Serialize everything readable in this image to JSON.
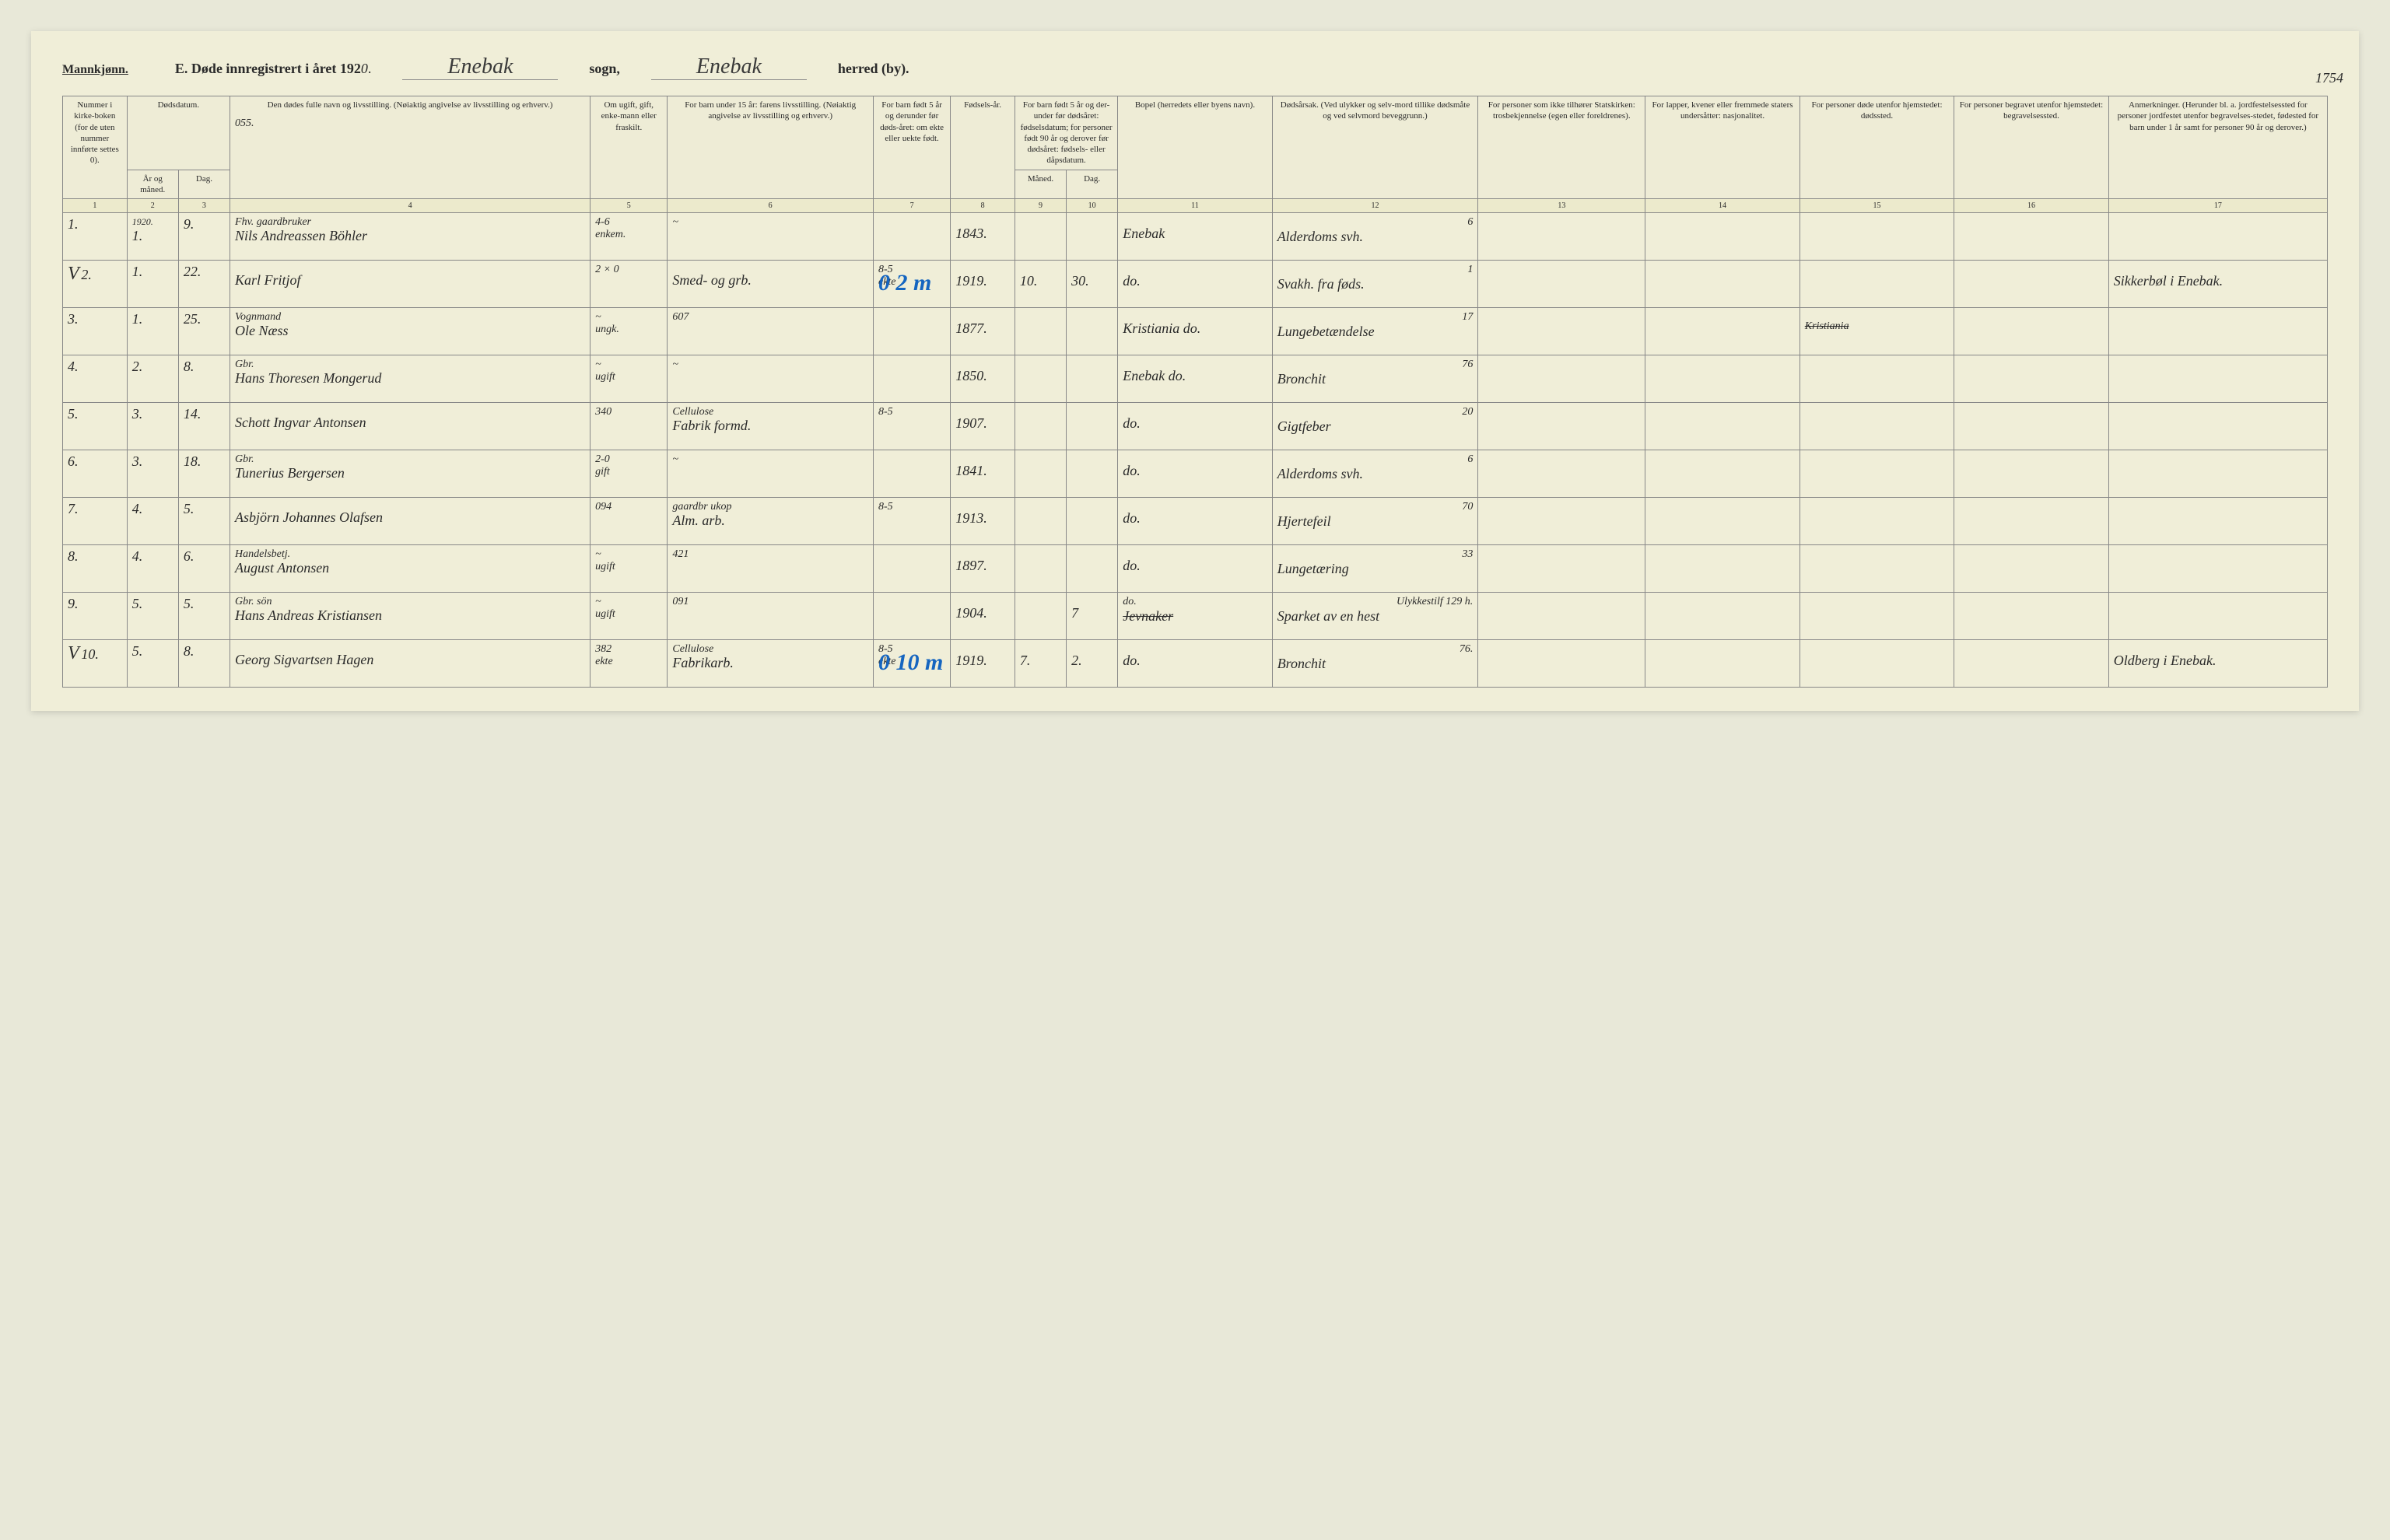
{
  "header": {
    "gender": "Mannkjønn.",
    "title_prefix": "E.  Døde innregistrert i året 192",
    "year_digit": "0",
    "period": ".",
    "parish_script": "Enebak",
    "parish_label": "sogn,",
    "district_script": "Enebak",
    "district_label": "herred (by).",
    "page_number": "1754"
  },
  "columns": {
    "c1": "Nummer i kirke-boken (for de uten nummer innførte settes 0).",
    "c2_group": "Dødsdatum.",
    "c2": "År og måned.",
    "c3": "Dag.",
    "c4": "Den dødes fulle navn og livsstilling. (Nøiaktig angivelse av livsstilling og erhverv.)",
    "c4_note": "055.",
    "c5": "Om ugift, gift, enke-mann eller fraskilt.",
    "c6": "For barn under 15 år: farens livsstilling. (Nøiaktig angivelse av livsstilling og erhverv.)",
    "c7": "For barn født 5 år og derunder før døds-året: om ekte eller uekte født.",
    "c8": "Fødsels-år.",
    "c9_group": "For barn født 5 år og der-under før dødsåret: fødselsdatum; for personer født 90 år og derover før dødsåret: fødsels- eller dåpsdatum.",
    "c9": "Måned.",
    "c10": "Dag.",
    "c11": "Bopel (herredets eller byens navn).",
    "c12": "Dødsårsak. (Ved ulykker og selv-mord tillike dødsmåte og ved selvmord beveggrunn.)",
    "c13": "For personer som ikke tilhører Statskirken: trosbekjennelse (egen eller foreldrenes).",
    "c14": "For lapper, kvener eller fremmede staters undersåtter: nasjonalitet.",
    "c15": "For personer døde utenfor hjemstedet: dødssted.",
    "c16": "For personer begravet utenfor hjemstedet: begravelsessted.",
    "c17": "Anmerkninger. (Herunder bl. a. jordfestelsessted for personer jordfestet utenfor begravelses-stedet, fødested for barn under 1 år samt for personer 90 år og derover.)"
  },
  "colnums": [
    "1",
    "2",
    "3",
    "4",
    "5",
    "6",
    "7",
    "8",
    "9",
    "10",
    "11",
    "12",
    "13",
    "14",
    "15",
    "16",
    "17"
  ],
  "rows": [
    {
      "num": "1.",
      "mark": "",
      "year": "1920.",
      "month": "1.",
      "day": "9.",
      "name_top": "Fhv. gaardbruker",
      "name": "Nils Andreassen Böhler",
      "status": "enkem.",
      "status_top": "4-6",
      "father_top": "~",
      "father": "",
      "born_top": "",
      "born": "",
      "year_born": "1843.",
      "fm": "",
      "fd": "",
      "place": "Enebak",
      "cause_top": "6",
      "cause": "Alderdoms svh.",
      "c13": "",
      "c14": "",
      "c15": "",
      "c16": "",
      "c17": ""
    },
    {
      "num": "2.",
      "mark": "V",
      "year": "",
      "month": "1.",
      "day": "22.",
      "name_top": "",
      "name": "Karl Fritjof",
      "status": "",
      "status_top": "2 × 0",
      "father_top": "",
      "father": "Smed- og grb.",
      "born_top": "8-5",
      "born": "ekte",
      "year_born": "1919.",
      "fm": "10.",
      "fd": "30.",
      "blue_note": "0 2 m",
      "place": "do.",
      "cause_top": "1",
      "cause": "Svakh. fra føds.",
      "c13": "",
      "c14": "",
      "c15": "",
      "c16": "",
      "c17": "Sikkerbøl i Enebak."
    },
    {
      "num": "3.",
      "mark": "",
      "year": "",
      "month": "1.",
      "day": "25.",
      "name_top": "Vognmand",
      "name": "Ole Næss",
      "status": "ungk.",
      "status_top": "~",
      "father_top": "607",
      "father": "",
      "born_top": "",
      "born": "",
      "year_born": "1877.",
      "fm": "",
      "fd": "",
      "place": "Kristiania do.",
      "cause_top": "17",
      "cause": "Lungebetændelse",
      "c13": "",
      "c14": "",
      "c15": "Kristiania",
      "c15_strike": true,
      "c16": "",
      "c17": ""
    },
    {
      "num": "4.",
      "mark": "",
      "year": "",
      "month": "2.",
      "day": "8.",
      "name_top": "Gbr.",
      "name": "Hans Thoresen Mongerud",
      "status": "ugift",
      "status_top": "~",
      "father_top": "~",
      "father": "",
      "born_top": "",
      "born": "",
      "year_born": "1850.",
      "fm": "",
      "fd": "",
      "place": "Enebak do.",
      "cause_top": "76",
      "cause": "Bronchit",
      "c13": "",
      "c14": "",
      "c15": "",
      "c16": "",
      "c17": ""
    },
    {
      "num": "5.",
      "mark": "",
      "year": "",
      "month": "3.",
      "day": "14.",
      "name_top": "",
      "name": "Schott Ingvar Antonsen",
      "status": "",
      "status_top": "340",
      "father_top": "Cellulose",
      "father": "Fabrik formd.",
      "born_top": "8-5",
      "born": "",
      "year_born": "1907.",
      "fm": "",
      "fd": "",
      "place": "do.",
      "cause_top": "20",
      "cause": "Gigtfeber",
      "c13": "",
      "c14": "",
      "c15": "",
      "c16": "",
      "c17": ""
    },
    {
      "num": "6.",
      "mark": "",
      "year": "",
      "month": "3.",
      "day": "18.",
      "name_top": "Gbr.",
      "name": "Tunerius Bergersen",
      "status": "gift",
      "status_top": "2-0",
      "father_top": "~",
      "father": "",
      "born_top": "",
      "born": "",
      "year_born": "1841.",
      "fm": "",
      "fd": "",
      "place": "do.",
      "cause_top": "6",
      "cause": "Alderdoms svh.",
      "c13": "",
      "c14": "",
      "c15": "",
      "c16": "",
      "c17": ""
    },
    {
      "num": "7.",
      "mark": "",
      "year": "",
      "month": "4.",
      "day": "5.",
      "name_top": "",
      "name": "Asbjörn Johannes Olafsen",
      "status": "",
      "status_top": "094",
      "father_top": "gaardbr ukop",
      "father": "Alm. arb.",
      "born_top": "8-5",
      "born": "",
      "year_born": "1913.",
      "fm": "",
      "fd": "",
      "place": "do.",
      "cause_top": "70",
      "cause": "Hjertefeil",
      "c13": "",
      "c14": "",
      "c15": "",
      "c16": "",
      "c17": ""
    },
    {
      "num": "8.",
      "mark": "",
      "year": "",
      "month": "4.",
      "day": "6.",
      "name_top": "Handelsbetj.",
      "name": "August Antonsen",
      "status": "ugift",
      "status_top": "~",
      "father_top": "421",
      "father": "",
      "born_top": "",
      "born": "",
      "year_born": "1897.",
      "fm": "",
      "fd": "",
      "place": "do.",
      "cause_top": "33",
      "cause": "Lungetæring",
      "c13": "",
      "c14": "",
      "c15": "",
      "c16": "",
      "c17": ""
    },
    {
      "num": "9.",
      "mark": "",
      "year": "",
      "month": "5.",
      "day": "5.",
      "name_top": "Gbr. sön",
      "name": "Hans Andreas Kristiansen",
      "status": "ugift",
      "status_top": "~",
      "father_top": "091",
      "father": "",
      "born_top": "",
      "born": "",
      "year_born": "1904.",
      "fm": "",
      "fd": "7",
      "place": "do. Jevnaker",
      "place_strike": true,
      "cause_top": "Ulykkestilf 129 h.",
      "cause": "Sparket av en hest",
      "c13": "",
      "c14": "",
      "c15": "",
      "c16": "",
      "c17": ""
    },
    {
      "num": "10.",
      "mark": "V",
      "year": "",
      "month": "5.",
      "day": "8.",
      "name_top": "",
      "name": "Georg Sigvartsen Hagen",
      "status": "ekte",
      "status_top": "382",
      "father_top": "Cellulose",
      "father": "Fabrikarb.",
      "born_top": "8-5",
      "born": "ekte",
      "year_born": "1919.",
      "fm": "7.",
      "fd": "2.",
      "blue_note": "0 10 m",
      "place": "do.",
      "cause_top": "76.",
      "cause": "Bronchit",
      "c13": "",
      "c14": "",
      "c15": "",
      "c16": "",
      "c17": "Oldberg i Enebak."
    }
  ]
}
